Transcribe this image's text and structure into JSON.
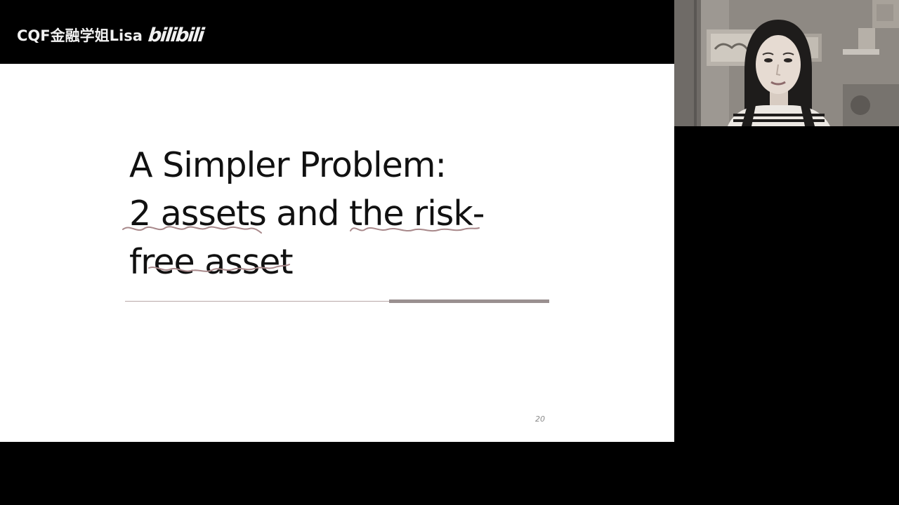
{
  "watermark": {
    "channel": "CQF金融学姐Lisa",
    "logo_text": "bilibili"
  },
  "slide": {
    "title_lines": [
      "A Simpler Problem:",
      "2 assets and the risk-",
      "free asset"
    ],
    "page_number": "20"
  },
  "webcam": {
    "subject": "presenter"
  },
  "colors": {
    "background": "#000000",
    "slide_background": "#ffffff",
    "title_text": "#111111",
    "annotation_ink": "#a8888a",
    "watermark_text": "#f1f1f1"
  }
}
